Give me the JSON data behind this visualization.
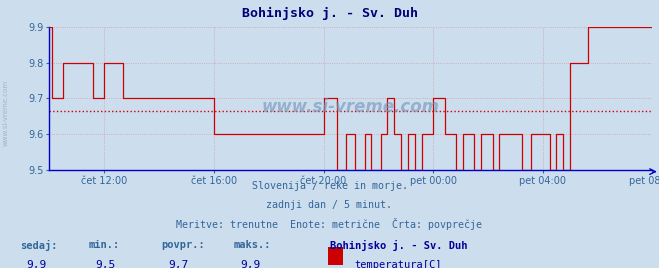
{
  "title": "Bohinjsko j. - Sv. Duh",
  "bg_color": "#ccdded",
  "plot_bg_color": "#ccdded",
  "line_color": "#cc0000",
  "avg_line_color": "#cc0000",
  "avg_value": 9.665,
  "y_min": 9.5,
  "y_max": 9.9,
  "y_ticks": [
    9.5,
    9.6,
    9.7,
    9.8,
    9.9
  ],
  "x_tick_labels": [
    "čet 12:00",
    "čet 16:00",
    "čet 20:00",
    "pet 00:00",
    "pet 04:00",
    "pet 08:00"
  ],
  "subtitle_lines": [
    "Slovenija / reke in morje.",
    "zadnji dan / 5 minut.",
    "Meritve: trenutne  Enote: metrične  Črta: povprečje"
  ],
  "footer_labels": [
    "sedaj:",
    "min.:",
    "povpr.:",
    "maks.:"
  ],
  "footer_values": [
    "9,9",
    "9,5",
    "9,7",
    "9,9"
  ],
  "legend_title": "Bohinjsko j. - Sv. Duh",
  "legend_label": "temperatura[C]",
  "legend_color": "#cc0000",
  "watermark": "www.si-vreme.com",
  "axis_color": "#0000cc",
  "tick_color": "#336699",
  "grid_color": "#cc9999",
  "title_color": "#000077",
  "subtitle_color": "#336699",
  "footer_label_color": "#336699",
  "footer_value_color": "#000099"
}
